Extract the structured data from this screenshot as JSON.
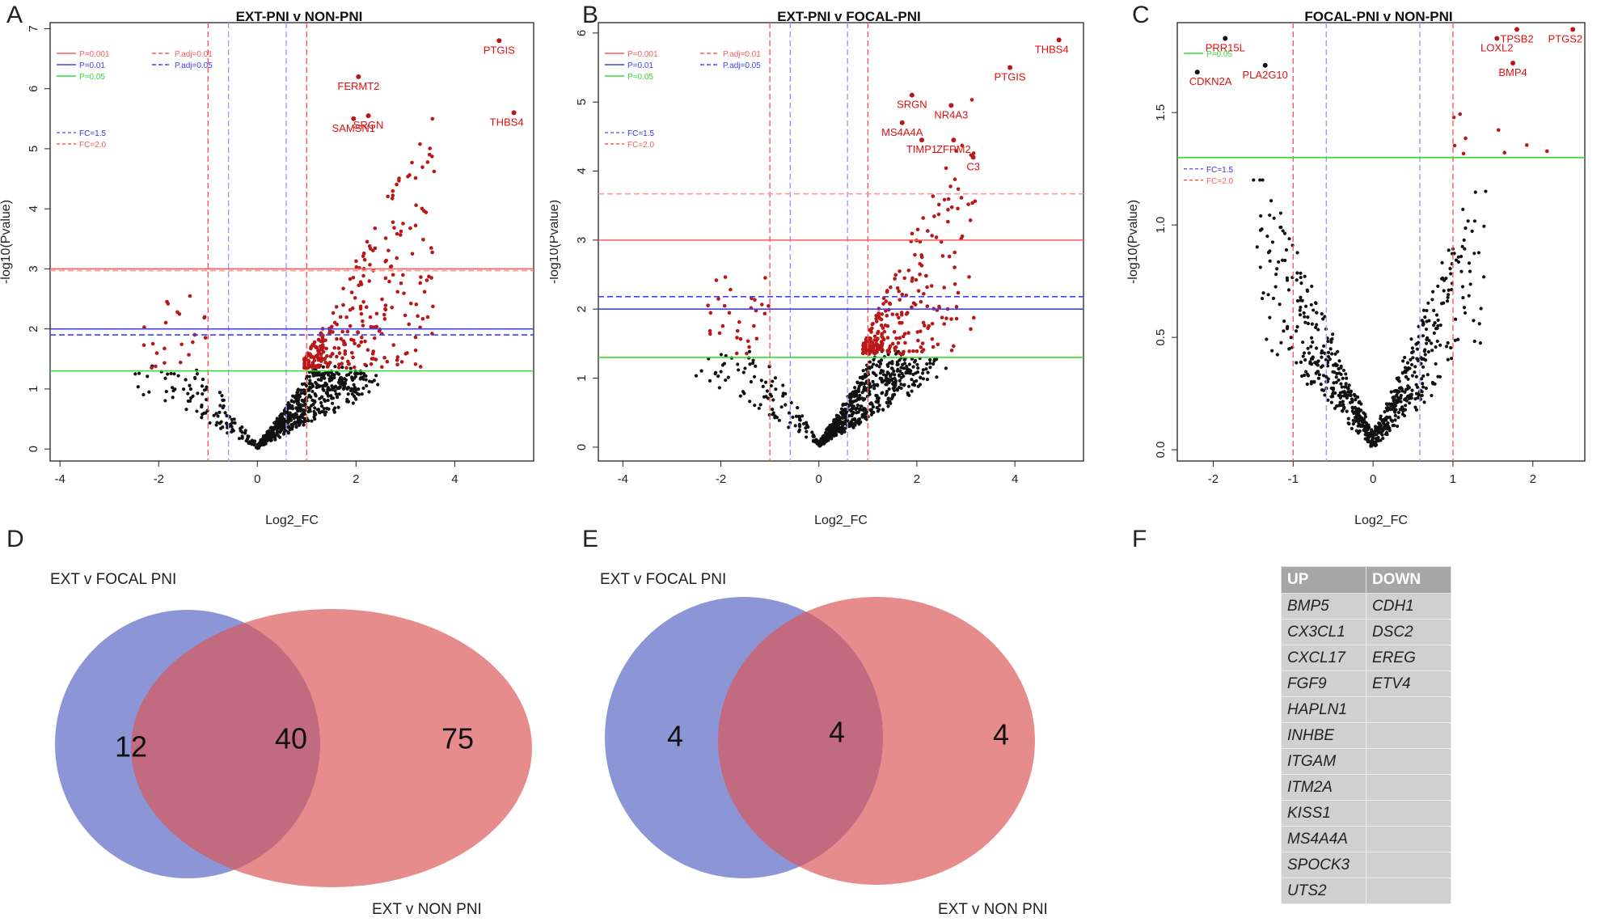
{
  "panels": {
    "A": {
      "letter": "A",
      "title": "EXT-PNI v NON-PNI"
    },
    "B": {
      "letter": "B",
      "title": "EXT-PNI v FOCAL-PNI"
    },
    "C": {
      "letter": "C",
      "title": "FOCAL-PNI v NON-PNI"
    },
    "D": {
      "letter": "D"
    },
    "E": {
      "letter": "E"
    },
    "F": {
      "letter": "F"
    }
  },
  "chart_data": [
    {
      "id": "A",
      "type": "scatter",
      "title": "EXT-PNI v NON-PNI",
      "xlabel": "Log2_FC",
      "ylabel": "-log10(Pvalue)",
      "xlim": [
        -4.2,
        5.6
      ],
      "ylim": [
        -0.2,
        7.1
      ],
      "xticks": [
        -4,
        -2,
        0,
        2,
        4
      ],
      "yticks": [
        0,
        1,
        2,
        3,
        4,
        5,
        6,
        7
      ],
      "hlines": [
        {
          "y": 3.0,
          "color": "#ff5a5a",
          "dash": false
        },
        {
          "y": 2.97,
          "color": "#ff9a9a",
          "dash": true
        },
        {
          "y": 2.0,
          "color": "#4040ff",
          "dash": false
        },
        {
          "y": 1.9,
          "color": "#4040ff",
          "dash": true
        },
        {
          "y": 1.3,
          "color": "#33dd33",
          "dash": false
        }
      ],
      "vlines": [
        {
          "x": -1.0,
          "color": "#ff5a5a",
          "dash": true
        },
        {
          "x": 1.0,
          "color": "#ff5a5a",
          "dash": true
        },
        {
          "x": -0.585,
          "color": "#9a9aff",
          "dash": true
        },
        {
          "x": 0.585,
          "color": "#9a9aff",
          "dash": true
        }
      ],
      "legend": [
        {
          "label": "P=0.001",
          "color": "#ff5a5a",
          "dash": false
        },
        {
          "label": "P=0.01",
          "color": "#4040ff",
          "dash": false
        },
        {
          "label": "P=0.05",
          "color": "#33dd33",
          "dash": false
        },
        {
          "label": "P.adj=0.01",
          "color": "#ff5a5a",
          "dash": true
        },
        {
          "label": "P.adj=0.05",
          "color": "#4040ff",
          "dash": true
        }
      ],
      "legend2": [
        {
          "label": "FC=1.5",
          "color": "#6a6aff",
          "dash": true
        },
        {
          "label": "FC=2.0",
          "color": "#ff5a5a",
          "dash": true
        }
      ],
      "highlight": [
        {
          "label": "PTGIS",
          "x": 4.9,
          "y": 6.8
        },
        {
          "label": "THBS4",
          "x": 5.2,
          "y": 5.6
        },
        {
          "label": "FERMT2",
          "x": 2.05,
          "y": 6.2
        },
        {
          "label": "SRGN",
          "x": 2.25,
          "y": 5.55
        },
        {
          "label": "SAMSN1",
          "x": 1.95,
          "y": 5.5
        }
      ],
      "seed": 11,
      "red_x_range": [
        0.95,
        3.6
      ],
      "red_neg_count": 22,
      "red_count": 300
    },
    {
      "id": "B",
      "type": "scatter",
      "title": "EXT-PNI v FOCAL-PNI",
      "xlabel": "Log2_FC",
      "ylabel": "-log10(Pvalue)",
      "xlim": [
        -4.5,
        5.4
      ],
      "ylim": [
        -0.2,
        6.15
      ],
      "xticks": [
        -4,
        -2,
        0,
        2,
        4
      ],
      "yticks": [
        0,
        1,
        2,
        3,
        4,
        5,
        6
      ],
      "hlines": [
        {
          "y": 3.0,
          "color": "#ff5a5a",
          "dash": false
        },
        {
          "y": 3.67,
          "color": "#ff9a9a",
          "dash": true
        },
        {
          "y": 2.0,
          "color": "#4040ff",
          "dash": false
        },
        {
          "y": 2.18,
          "color": "#4040ff",
          "dash": true
        },
        {
          "y": 1.3,
          "color": "#33dd33",
          "dash": false
        }
      ],
      "vlines": [
        {
          "x": -1.0,
          "color": "#ff5a5a",
          "dash": true
        },
        {
          "x": 1.0,
          "color": "#ff5a5a",
          "dash": true
        },
        {
          "x": -0.585,
          "color": "#9a9aff",
          "dash": true
        },
        {
          "x": 0.585,
          "color": "#9a9aff",
          "dash": true
        }
      ],
      "legend": [
        {
          "label": "P=0.001",
          "color": "#ff5a5a",
          "dash": false
        },
        {
          "label": "P=0.01",
          "color": "#4040ff",
          "dash": false
        },
        {
          "label": "P=0.05",
          "color": "#33dd33",
          "dash": false
        },
        {
          "label": "P.adj=0.01",
          "color": "#ff5a5a",
          "dash": true
        },
        {
          "label": "P.adj=0.05",
          "color": "#4040ff",
          "dash": true
        }
      ],
      "legend2": [
        {
          "label": "FC=1.5",
          "color": "#6a6aff",
          "dash": true
        },
        {
          "label": "FC=2.0",
          "color": "#ff5a5a",
          "dash": true
        }
      ],
      "highlight": [
        {
          "label": "THBS4",
          "x": 4.9,
          "y": 5.9
        },
        {
          "label": "PTGIS",
          "x": 3.9,
          "y": 5.5
        },
        {
          "label": "SRGN",
          "x": 1.9,
          "y": 5.1
        },
        {
          "label": "NR4A3",
          "x": 2.7,
          "y": 4.95
        },
        {
          "label": "MS4A4A",
          "x": 1.7,
          "y": 4.7
        },
        {
          "label": "TIMP1",
          "x": 2.1,
          "y": 4.45
        },
        {
          "label": "ZFPM2",
          "x": 2.75,
          "y": 4.45
        },
        {
          "label": "C3",
          "x": 3.15,
          "y": 4.2
        }
      ],
      "seed": 23,
      "red_x_range": [
        0.9,
        3.2
      ],
      "red_neg_count": 30,
      "red_count": 260
    },
    {
      "id": "C",
      "type": "scatter",
      "title": "FOCAL-PNI v NON-PNI",
      "xlabel": "Log2_FC",
      "ylabel": "-log10(Pvalue)",
      "xlim": [
        -2.45,
        2.65
      ],
      "ylim": [
        -0.05,
        1.9
      ],
      "xticks": [
        -2,
        -1,
        0,
        1,
        2
      ],
      "ytick_labels": [
        "0.0",
        "0.5",
        "1.0",
        "1.5"
      ],
      "yticks": [
        0,
        0.5,
        1.0,
        1.5
      ],
      "hlines": [
        {
          "y": 1.3,
          "color": "#33dd33",
          "dash": false
        }
      ],
      "vlines": [
        {
          "x": -1.0,
          "color": "#ff5a5a",
          "dash": true
        },
        {
          "x": 1.0,
          "color": "#ff5a5a",
          "dash": true
        },
        {
          "x": -0.585,
          "color": "#9a9aff",
          "dash": true
        },
        {
          "x": 0.585,
          "color": "#9a9aff",
          "dash": true
        }
      ],
      "legend": [
        {
          "label": "P=0.05",
          "color": "#33dd33",
          "dash": false
        }
      ],
      "legend2": [
        {
          "label": "FC=1.5",
          "color": "#6a6aff",
          "dash": true
        },
        {
          "label": "FC=2.0",
          "color": "#ff5a5a",
          "dash": true
        }
      ],
      "highlight": [
        {
          "label": "CDKN2A",
          "x": -2.2,
          "y": 1.68
        },
        {
          "label": "PRR15L",
          "x": -1.85,
          "y": 1.83
        },
        {
          "label": "PLA2G10",
          "x": -1.35,
          "y": 1.71
        },
        {
          "label": "LOXL2",
          "x": 1.55,
          "y": 1.83
        },
        {
          "label": "TPSB2",
          "x": 1.8,
          "y": 1.87
        },
        {
          "label": "PTGS2",
          "x": 2.5,
          "y": 1.87
        },
        {
          "label": "BMP4",
          "x": 1.75,
          "y": 1.72
        }
      ],
      "seed": 37,
      "red_x_range": [
        1.0,
        2.3
      ],
      "red_neg_count": 0,
      "red_count": 9
    }
  ],
  "venns": [
    {
      "id": "D",
      "left_label": "EXT v FOCAL PNI",
      "right_label": "EXT v NON PNI",
      "left_only": "12",
      "overlap": "40",
      "right_only": "75"
    },
    {
      "id": "E",
      "left_label": "EXT v FOCAL PNI",
      "right_label": "EXT v NON PNI",
      "left_only": "4",
      "overlap": "4",
      "right_only": "4"
    }
  ],
  "gene_table": {
    "headers": [
      "UP",
      "DOWN"
    ],
    "rows": [
      [
        "BMP5",
        "CDH1"
      ],
      [
        "CX3CL1",
        "DSC2"
      ],
      [
        "CXCL17",
        "EREG"
      ],
      [
        "FGF9",
        "ETV4"
      ],
      [
        "HAPLN1",
        ""
      ],
      [
        "INHBE",
        ""
      ],
      [
        "ITGAM",
        ""
      ],
      [
        "ITM2A",
        ""
      ],
      [
        "KISS1",
        ""
      ],
      [
        "MS4A4A",
        ""
      ],
      [
        "SPOCK3",
        ""
      ],
      [
        "UTS2",
        ""
      ]
    ]
  },
  "colors": {
    "sig": "#b81818",
    "label": "#dd1111",
    "nonsig": "#111111",
    "blue_venn": "#5563c1",
    "red_venn": "#dc5555"
  }
}
